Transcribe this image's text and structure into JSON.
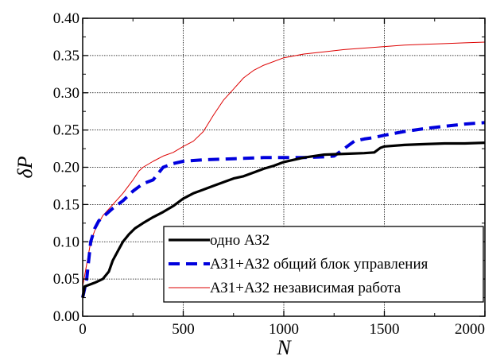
{
  "chart_data": {
    "type": "line",
    "title": "",
    "xlabel": "N",
    "ylabel": "δP",
    "xlim": [
      0,
      2000
    ],
    "ylim": [
      0,
      0.4
    ],
    "grid": true,
    "legend_position": "bottom-right",
    "x_ticks": [
      "0",
      "500",
      "1000",
      "1500",
      "2000"
    ],
    "y_ticks": [
      "0.00",
      "0.05",
      "0.10",
      "0.15",
      "0.20",
      "0.25",
      "0.30",
      "0.35",
      "0.40"
    ],
    "series": [
      {
        "name": "одно АЗ2",
        "color": "#000000",
        "style": "solid-thick",
        "x": [
          0,
          10,
          30,
          60,
          100,
          130,
          150,
          180,
          200,
          230,
          260,
          300,
          350,
          400,
          450,
          500,
          550,
          600,
          650,
          700,
          750,
          800,
          850,
          900,
          950,
          1000,
          1050,
          1100,
          1150,
          1200,
          1300,
          1400,
          1450,
          1480,
          1500,
          1600,
          1700,
          1800,
          1900,
          2000
        ],
        "y": [
          0.025,
          0.04,
          0.042,
          0.045,
          0.05,
          0.06,
          0.075,
          0.09,
          0.1,
          0.11,
          0.118,
          0.125,
          0.133,
          0.14,
          0.148,
          0.158,
          0.165,
          0.17,
          0.175,
          0.18,
          0.185,
          0.188,
          0.193,
          0.198,
          0.202,
          0.207,
          0.21,
          0.213,
          0.215,
          0.217,
          0.218,
          0.219,
          0.22,
          0.226,
          0.228,
          0.23,
          0.231,
          0.232,
          0.232,
          0.233
        ]
      },
      {
        "name": "АЗ1+АЗ2 общий блок управления",
        "color": "#0000dd",
        "style": "dashed-thick",
        "x": [
          0,
          20,
          40,
          60,
          80,
          100,
          150,
          200,
          250,
          300,
          350,
          400,
          450,
          500,
          600,
          700,
          800,
          900,
          1000,
          1100,
          1200,
          1250,
          1300,
          1350,
          1400,
          1450,
          1500,
          1600,
          1700,
          1800,
          1900,
          2000
        ],
        "y": [
          0.025,
          0.05,
          0.1,
          0.118,
          0.128,
          0.133,
          0.145,
          0.155,
          0.168,
          0.178,
          0.183,
          0.2,
          0.205,
          0.208,
          0.21,
          0.211,
          0.212,
          0.213,
          0.213,
          0.213,
          0.214,
          0.215,
          0.225,
          0.235,
          0.238,
          0.24,
          0.243,
          0.248,
          0.252,
          0.255,
          0.258,
          0.26
        ]
      },
      {
        "name": "АЗ1+АЗ2 независимая работа",
        "color": "#dd0000",
        "style": "solid-thin",
        "x": [
          0,
          20,
          40,
          60,
          80,
          100,
          150,
          200,
          250,
          280,
          300,
          350,
          400,
          450,
          500,
          550,
          600,
          650,
          700,
          750,
          800,
          850,
          900,
          1000,
          1100,
          1200,
          1300,
          1400,
          1500,
          1600,
          1700,
          1800,
          1900,
          2000
        ],
        "y": [
          0.04,
          0.07,
          0.1,
          0.115,
          0.125,
          0.135,
          0.15,
          0.165,
          0.183,
          0.195,
          0.2,
          0.208,
          0.215,
          0.22,
          0.228,
          0.235,
          0.248,
          0.27,
          0.29,
          0.305,
          0.32,
          0.33,
          0.337,
          0.347,
          0.352,
          0.355,
          0.358,
          0.36,
          0.362,
          0.364,
          0.365,
          0.366,
          0.367,
          0.368
        ]
      }
    ]
  }
}
